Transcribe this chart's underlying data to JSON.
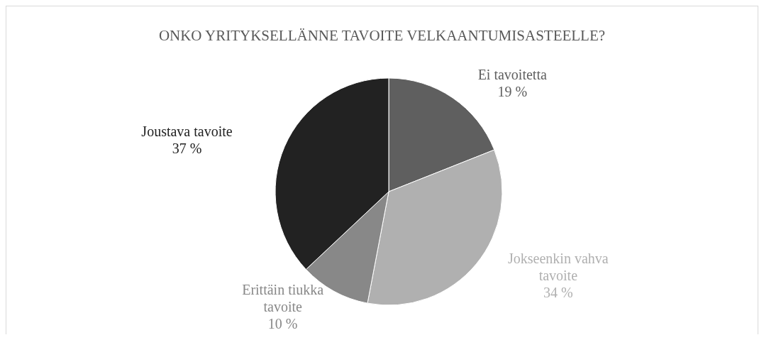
{
  "chart_data": {
    "type": "pie",
    "title": "ONKO YRITYKSELLÄNNE TAVOITE VELKAANTUMISASTEELLE?",
    "categories": [
      "Ei tavoitetta",
      "Jokseenkin vahva tavoite",
      "Erittäin tiukka tavoite",
      "Joustava tavoite"
    ],
    "values": [
      19,
      34,
      10,
      37
    ],
    "colors": [
      "#5f5f5f",
      "#b0b0b0",
      "#888888",
      "#222222"
    ],
    "value_labels": [
      "19 %",
      "34 %",
      "10 %",
      "37 %"
    ],
    "legend": false
  }
}
